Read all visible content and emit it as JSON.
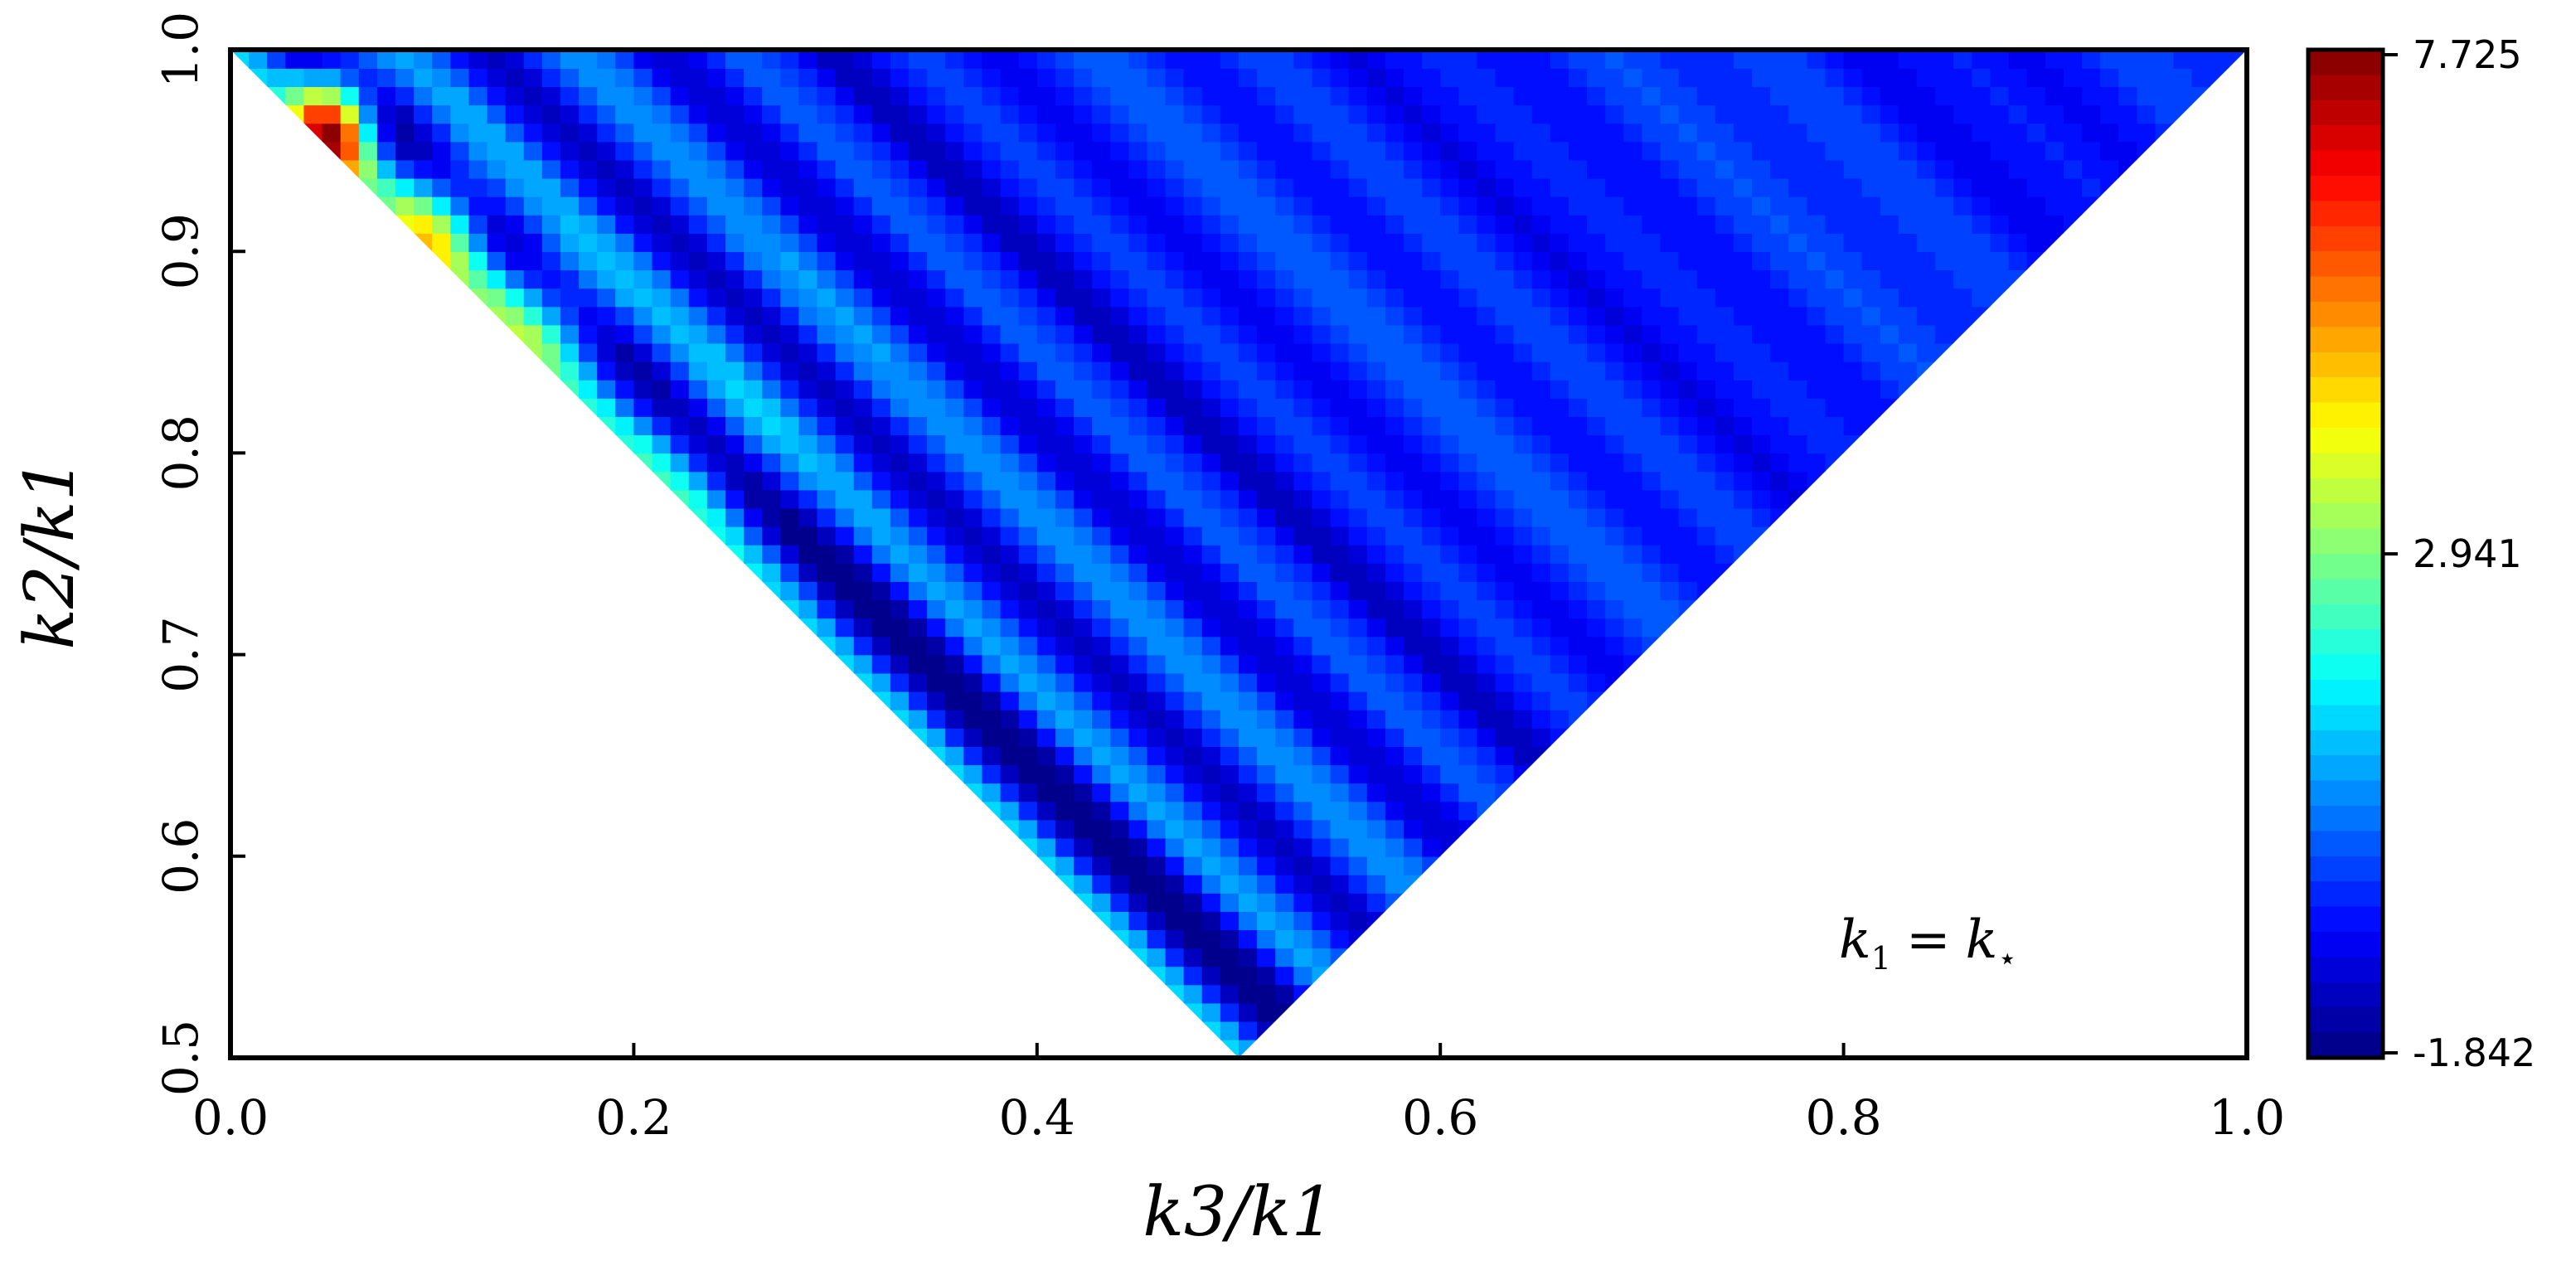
{
  "chart_data": {
    "type": "heatmap",
    "title": "",
    "xlabel": "k3/k1",
    "ylabel": "k2/k1",
    "xlim": [
      0.0,
      1.0
    ],
    "ylim": [
      0.5,
      1.0
    ],
    "x_ticks": [
      "0.0",
      "0.2",
      "0.4",
      "0.6",
      "0.8",
      "1.0"
    ],
    "x_tick_values": [
      0.0,
      0.2,
      0.4,
      0.6,
      0.8,
      1.0
    ],
    "y_ticks": [
      "0.5",
      "0.6",
      "0.7",
      "0.8",
      "0.9",
      "1.0"
    ],
    "y_tick_values": [
      0.5,
      0.6,
      0.7,
      0.8,
      0.9,
      1.0
    ],
    "grid": false,
    "colormap": "jet",
    "colorbar": {
      "min": -1.842,
      "max": 7.725,
      "ticks": [
        "7.725",
        "2.941",
        "-1.842"
      ],
      "tick_values": [
        7.725,
        2.941,
        -1.842
      ]
    },
    "domain": "triangle with vertices (0,1), (1,1), (0.5,0.5): k2/k1 >= 1 - k3/k1 and k2/k1 >= k3/k1",
    "annotation": {
      "text": "k1 = k*",
      "lhs": "k",
      "lhs_sub": "1",
      "eq": "=",
      "rhs": "k",
      "rhs_sub": "⋆"
    },
    "features": [
      {
        "description": "peak near squeezed corner",
        "x": 0.05,
        "y": 0.96,
        "value": 7.7
      },
      {
        "description": "secondary maximum",
        "x": 0.1,
        "y": 0.91,
        "value": 4.5
      },
      {
        "description": "bright band near apex",
        "x": 0.51,
        "y": 0.535,
        "value": 1.9
      },
      {
        "description": "flat region near equilateral edge",
        "x": 0.9,
        "y": 0.95,
        "value": -0.5
      }
    ],
    "colors": {
      "frame": "#000000",
      "background": "#ffffff"
    }
  }
}
